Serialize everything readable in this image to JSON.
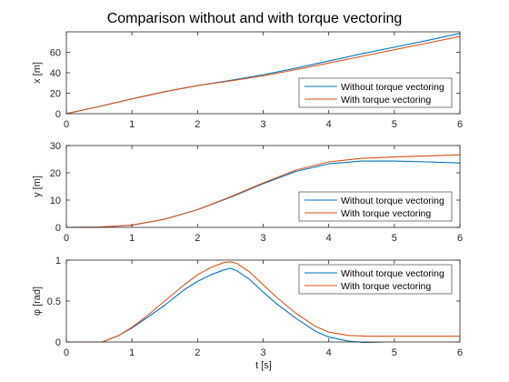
{
  "figure": {
    "title": "Comparison without and with torque vectoring",
    "xlabel": "t [s]"
  },
  "colors": {
    "series_1": "#0072BD",
    "series_2": "#D95319",
    "axes": "#262626",
    "background": "#ffffff"
  },
  "chart_data": [
    {
      "type": "line",
      "ylabel": "x [m]",
      "xlim": [
        0,
        6
      ],
      "ylim": [
        0,
        80
      ],
      "xticks": [
        0,
        1,
        2,
        3,
        4,
        5,
        6
      ],
      "yticks": [
        0,
        20,
        40,
        60
      ],
      "grid": false,
      "legend_position": "bottom-right",
      "series": [
        {
          "name": "Without torque vectoring",
          "x": [
            0,
            0.5,
            1,
            1.5,
            2,
            2.5,
            3,
            3.5,
            4,
            4.5,
            5,
            5.5,
            6
          ],
          "y": [
            0,
            7,
            14.5,
            21.5,
            27.5,
            32.5,
            38,
            44.5,
            51.5,
            58.5,
            65,
            71.5,
            78.5
          ]
        },
        {
          "name": "With torque vectoring",
          "x": [
            0,
            0.5,
            1,
            1.5,
            2,
            2.5,
            3,
            3.5,
            4,
            4.5,
            5,
            5.5,
            6
          ],
          "y": [
            0,
            7,
            14.5,
            21.5,
            27.5,
            32,
            37,
            43,
            49.5,
            56,
            62.5,
            69,
            75.5
          ]
        }
      ]
    },
    {
      "type": "line",
      "ylabel": "y [m]",
      "xlim": [
        0,
        6
      ],
      "ylim": [
        0,
        30
      ],
      "xticks": [
        0,
        1,
        2,
        3,
        4,
        5,
        6
      ],
      "yticks": [
        0,
        10,
        20,
        30
      ],
      "grid": false,
      "legend_position": "bottom-right",
      "series": [
        {
          "name": "Without torque vectoring",
          "x": [
            0,
            0.5,
            1,
            1.5,
            2,
            2.5,
            3,
            3.5,
            4,
            4.5,
            5,
            5.5,
            6
          ],
          "y": [
            0,
            0.1,
            0.8,
            3.0,
            6.5,
            11.0,
            16.0,
            20.5,
            23.3,
            24.3,
            24.3,
            24.0,
            23.6
          ]
        },
        {
          "name": "With torque vectoring",
          "x": [
            0,
            0.5,
            1,
            1.5,
            2,
            2.5,
            3,
            3.5,
            4,
            4.5,
            5,
            5.5,
            6
          ],
          "y": [
            0,
            0.1,
            0.8,
            3.0,
            6.5,
            11.2,
            16.3,
            21.0,
            24.0,
            25.3,
            25.8,
            26.2,
            26.6
          ]
        }
      ]
    },
    {
      "type": "line",
      "ylabel": "φ [rad]",
      "xlim": [
        0,
        6
      ],
      "ylim": [
        0,
        1
      ],
      "xticks": [
        0,
        1,
        2,
        3,
        4,
        5,
        6
      ],
      "yticks": [
        0,
        0.5,
        1
      ],
      "grid": false,
      "legend_position": "top-right",
      "series": [
        {
          "name": "Without torque vectoring",
          "x": [
            0,
            0.55,
            0.8,
            1,
            1.2,
            1.5,
            1.8,
            2,
            2.2,
            2.4,
            2.5,
            2.6,
            2.8,
            3,
            3.2,
            3.5,
            3.8,
            4,
            4.3,
            4.6,
            5,
            5.5,
            6
          ],
          "y": [
            0,
            0,
            0.08,
            0.17,
            0.28,
            0.45,
            0.64,
            0.74,
            0.82,
            0.88,
            0.9,
            0.87,
            0.76,
            0.61,
            0.47,
            0.29,
            0.13,
            0.06,
            0.01,
            -0.01,
            -0.02,
            -0.02,
            -0.02
          ]
        },
        {
          "name": "With torque vectoring",
          "x": [
            0,
            0.55,
            0.8,
            1,
            1.2,
            1.5,
            1.8,
            2,
            2.2,
            2.4,
            2.5,
            2.6,
            2.8,
            3,
            3.2,
            3.5,
            3.8,
            4,
            4.3,
            4.6,
            5,
            5.5,
            6
          ],
          "y": [
            0,
            0,
            0.08,
            0.18,
            0.3,
            0.5,
            0.7,
            0.82,
            0.91,
            0.97,
            0.98,
            0.96,
            0.85,
            0.7,
            0.55,
            0.35,
            0.19,
            0.12,
            0.08,
            0.07,
            0.07,
            0.07,
            0.07
          ]
        }
      ]
    }
  ]
}
